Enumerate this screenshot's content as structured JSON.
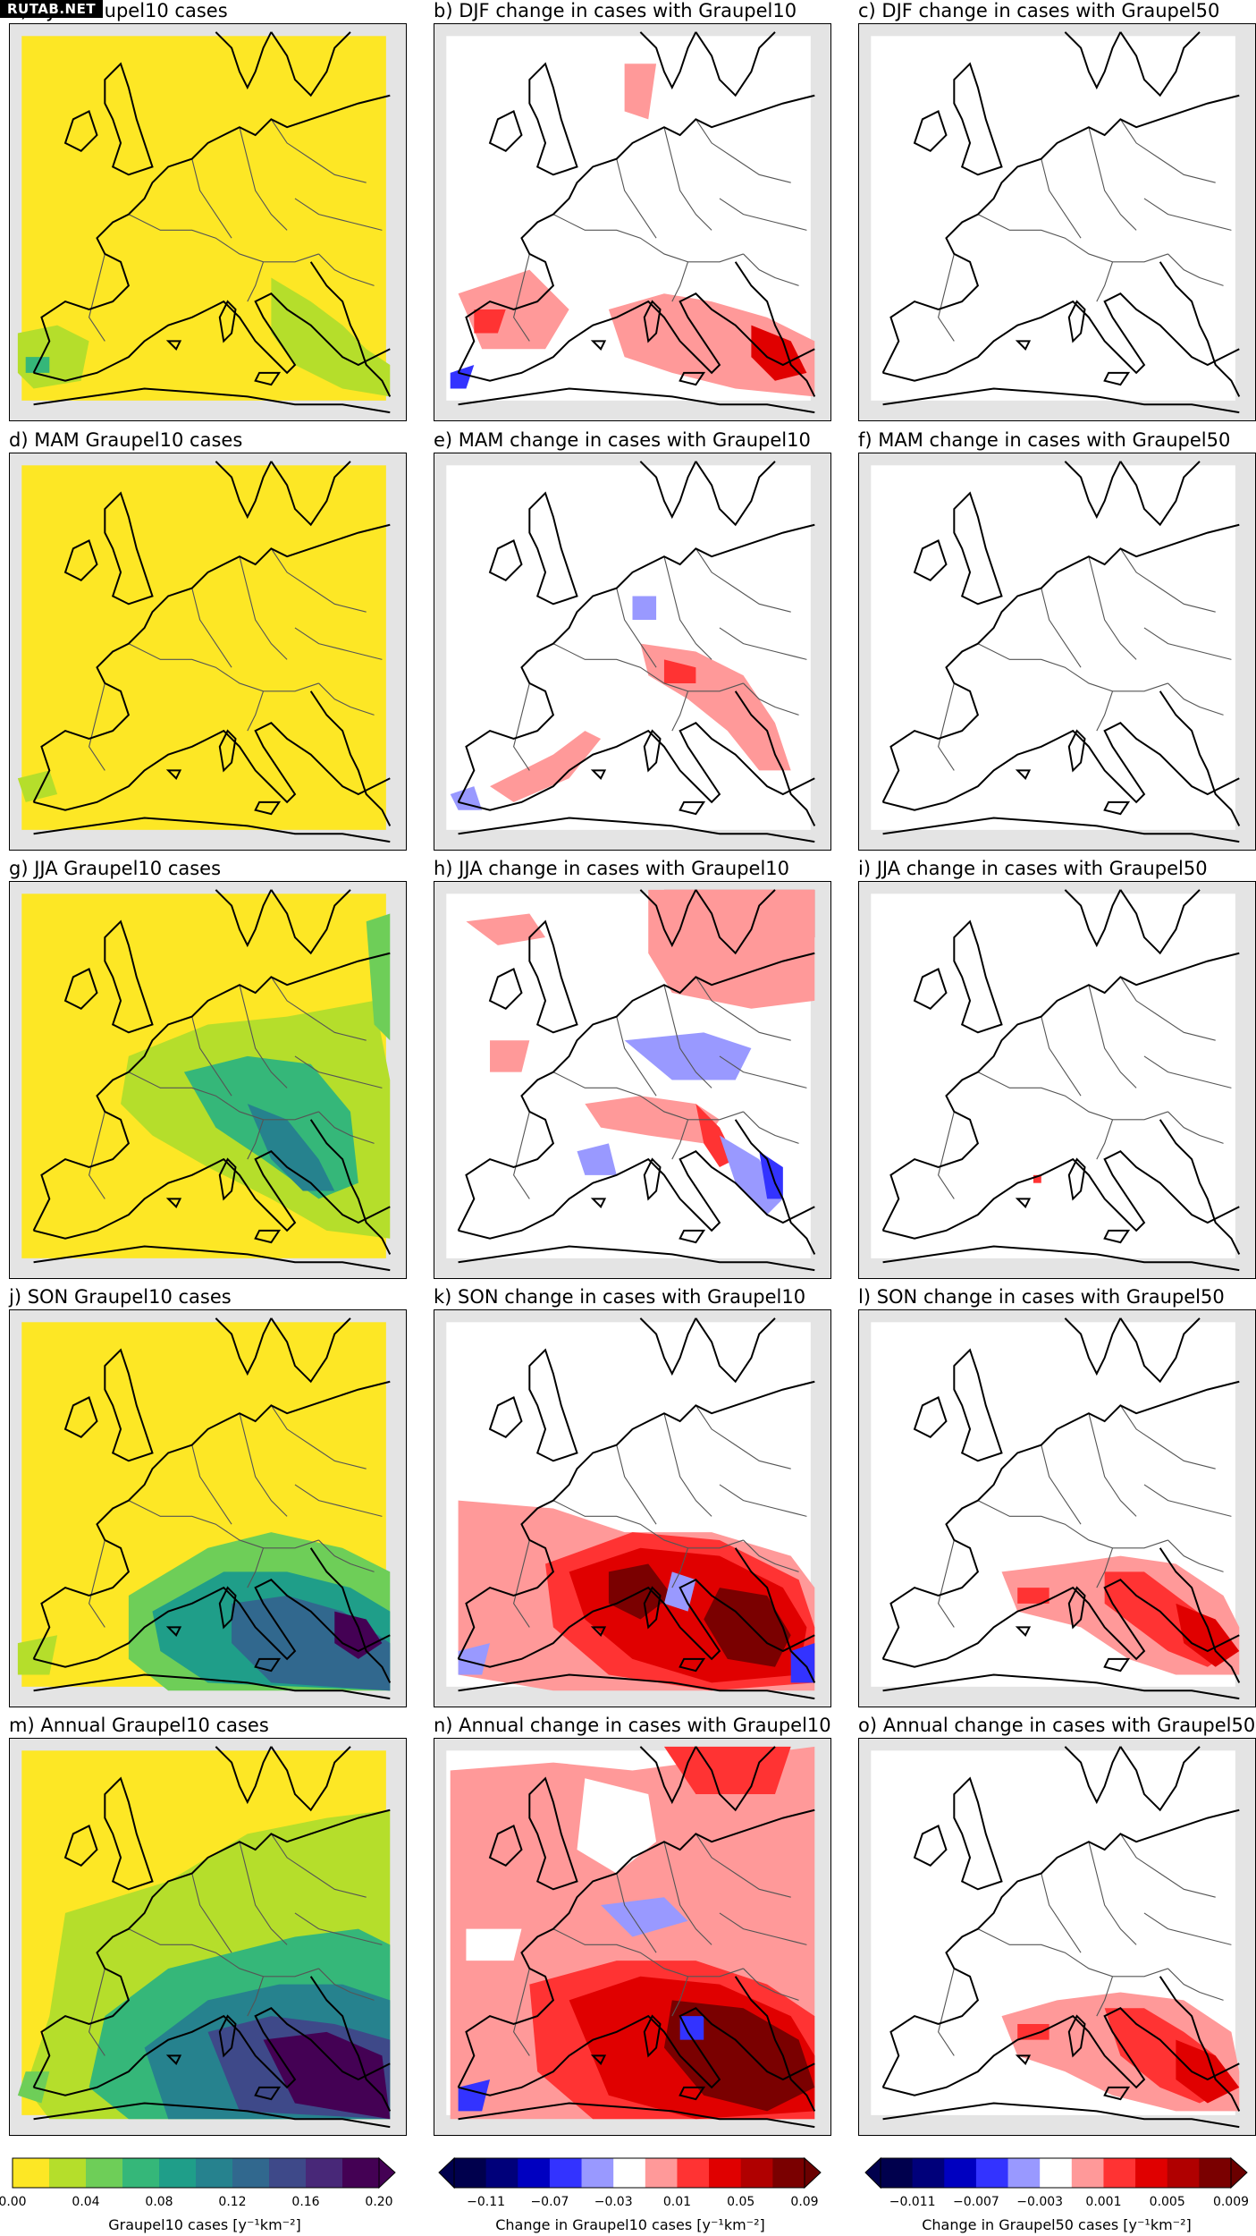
{
  "watermark": "RUTAB.NET",
  "panels": [
    {
      "id": "a",
      "title": "a) DJF Graupel10 cases",
      "type": "abs",
      "season": "DJF"
    },
    {
      "id": "b",
      "title": "b) DJF change in cases with Graupel10",
      "type": "chg10",
      "season": "DJF"
    },
    {
      "id": "c",
      "title": "c) DJF change in cases with Graupel50",
      "type": "chg50",
      "season": "DJF"
    },
    {
      "id": "d",
      "title": "d) MAM Graupel10 cases",
      "type": "abs",
      "season": "MAM"
    },
    {
      "id": "e",
      "title": "e) MAM change in cases with Graupel10",
      "type": "chg10",
      "season": "MAM"
    },
    {
      "id": "f",
      "title": "f) MAM change in cases with Graupel50",
      "type": "chg50",
      "season": "MAM"
    },
    {
      "id": "g",
      "title": "g) JJA Graupel10 cases",
      "type": "abs",
      "season": "JJA"
    },
    {
      "id": "h",
      "title": "h) JJA change in cases with Graupel10",
      "type": "chg10",
      "season": "JJA"
    },
    {
      "id": "i",
      "title": "i) JJA change in cases with Graupel50",
      "type": "chg50",
      "season": "JJA"
    },
    {
      "id": "j",
      "title": "j) SON Graupel10 cases",
      "type": "abs",
      "season": "SON"
    },
    {
      "id": "k",
      "title": "k) SON change in cases with Graupel10",
      "type": "chg10",
      "season": "SON"
    },
    {
      "id": "l",
      "title": "l) SON change in cases with Graupel50",
      "type": "chg50",
      "season": "SON"
    },
    {
      "id": "m",
      "title": "m) Annual Graupel10 cases",
      "type": "abs",
      "season": "Annual"
    },
    {
      "id": "n",
      "title": "n) Annual change in cases with Graupel10",
      "type": "chg10",
      "season": "Annual"
    },
    {
      "id": "o",
      "title": "o) Annual change in cases with Graupel50",
      "type": "chg50",
      "season": "Annual"
    }
  ],
  "colorbars": [
    {
      "id": "graupel10-abs",
      "label": "Graupel10 cases [y⁻¹km⁻²]",
      "ticks": [
        "0.00",
        "0.04",
        "0.08",
        "0.12",
        "0.16",
        "0.20"
      ],
      "colors": [
        "#fde725",
        "#b5de2b",
        "#6ece58",
        "#35b779",
        "#1f9e89",
        "#26828e",
        "#31688e",
        "#3e4989",
        "#482878",
        "#440154"
      ],
      "extend": "max",
      "extend_color": "#440154"
    },
    {
      "id": "graupel10-change",
      "label": "Change in Graupel10 cases [y⁻¹km⁻²]",
      "ticks": [
        "−0.11",
        "−0.07",
        "−0.03",
        "0.01",
        "0.05",
        "0.09"
      ],
      "colors": [
        "#00004d",
        "#00007a",
        "#0000c0",
        "#3333ff",
        "#9999ff",
        "#ffffff",
        "#ff9999",
        "#ff3333",
        "#e00000",
        "#b00000",
        "#7a0000"
      ],
      "extend": "both",
      "extend_low_color": "#00004d",
      "extend_high_color": "#6a0000"
    },
    {
      "id": "graupel50-change",
      "label": "Change in Graupel50 cases [y⁻¹km⁻²]",
      "ticks": [
        "−0.011",
        "−0.007",
        "−0.003",
        "0.001",
        "0.005",
        "0.009"
      ],
      "colors": [
        "#00004d",
        "#00007a",
        "#0000c0",
        "#3333ff",
        "#9999ff",
        "#ffffff",
        "#ff9999",
        "#ff3333",
        "#e00000",
        "#b00000",
        "#7a0000"
      ],
      "extend": "both",
      "extend_low_color": "#00004d",
      "extend_high_color": "#6a0000"
    }
  ],
  "colors": {
    "map_background": "#e4e4e4",
    "coast": "#000000",
    "border": "#555555",
    "abs_base": "#fde725",
    "change_base": "#ffffff"
  }
}
